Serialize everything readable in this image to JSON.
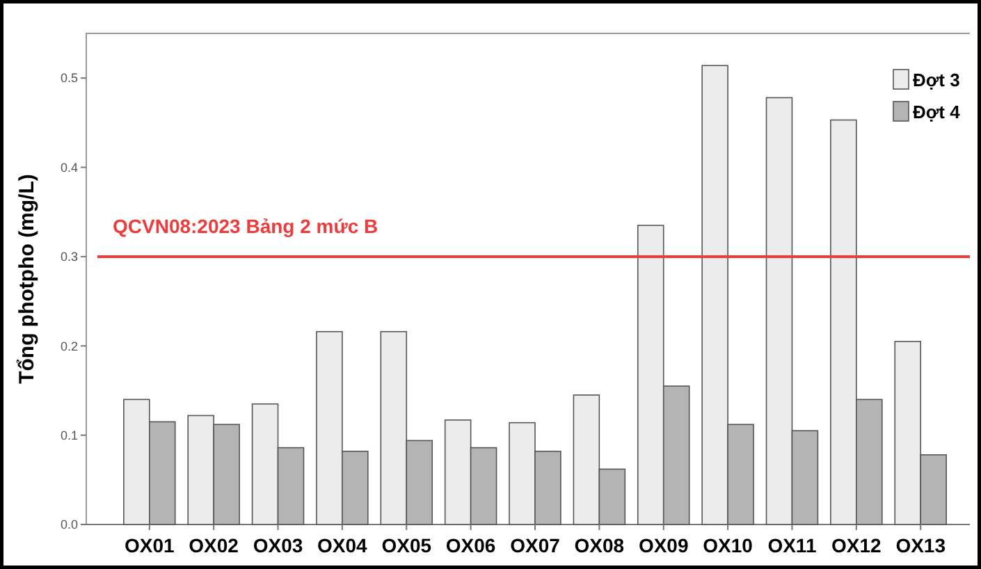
{
  "chart_data": {
    "type": "bar",
    "ylabel": "Tổng photpho (mg/L)",
    "categories": [
      "OX01",
      "OX02",
      "OX03",
      "OX04",
      "OX05",
      "OX06",
      "OX07",
      "OX08",
      "OX09",
      "OX10",
      "OX11",
      "OX12",
      "OX13"
    ],
    "series": [
      {
        "name": "Đợt 3",
        "color": "#ececec",
        "values": [
          0.14,
          0.122,
          0.135,
          0.216,
          0.216,
          0.117,
          0.114,
          0.145,
          0.335,
          0.514,
          0.478,
          0.453,
          0.205
        ]
      },
      {
        "name": "Đợt 4",
        "color": "#b4b4b4",
        "values": [
          0.115,
          0.112,
          0.086,
          0.082,
          0.094,
          0.086,
          0.082,
          0.062,
          0.155,
          0.112,
          0.105,
          0.14,
          0.078
        ]
      }
    ],
    "ylim": [
      0,
      0.55
    ],
    "yticks": [
      {
        "value": 0,
        "label": "0.0"
      },
      {
        "value": 0.1,
        "label": "0.1"
      },
      {
        "value": 0.2,
        "label": "0.2"
      },
      {
        "value": 0.3,
        "label": "0.3"
      },
      {
        "value": 0.4,
        "label": "0.4"
      },
      {
        "value": 0.5,
        "label": "0.5"
      }
    ],
    "ref_lines": [
      {
        "axis": "y",
        "value": 0.3,
        "color": "#ee3b3b"
      }
    ],
    "annotations": [
      "QCVN08:2023 Bảng 2 mức B"
    ],
    "legend": "top right",
    "grid": false
  }
}
